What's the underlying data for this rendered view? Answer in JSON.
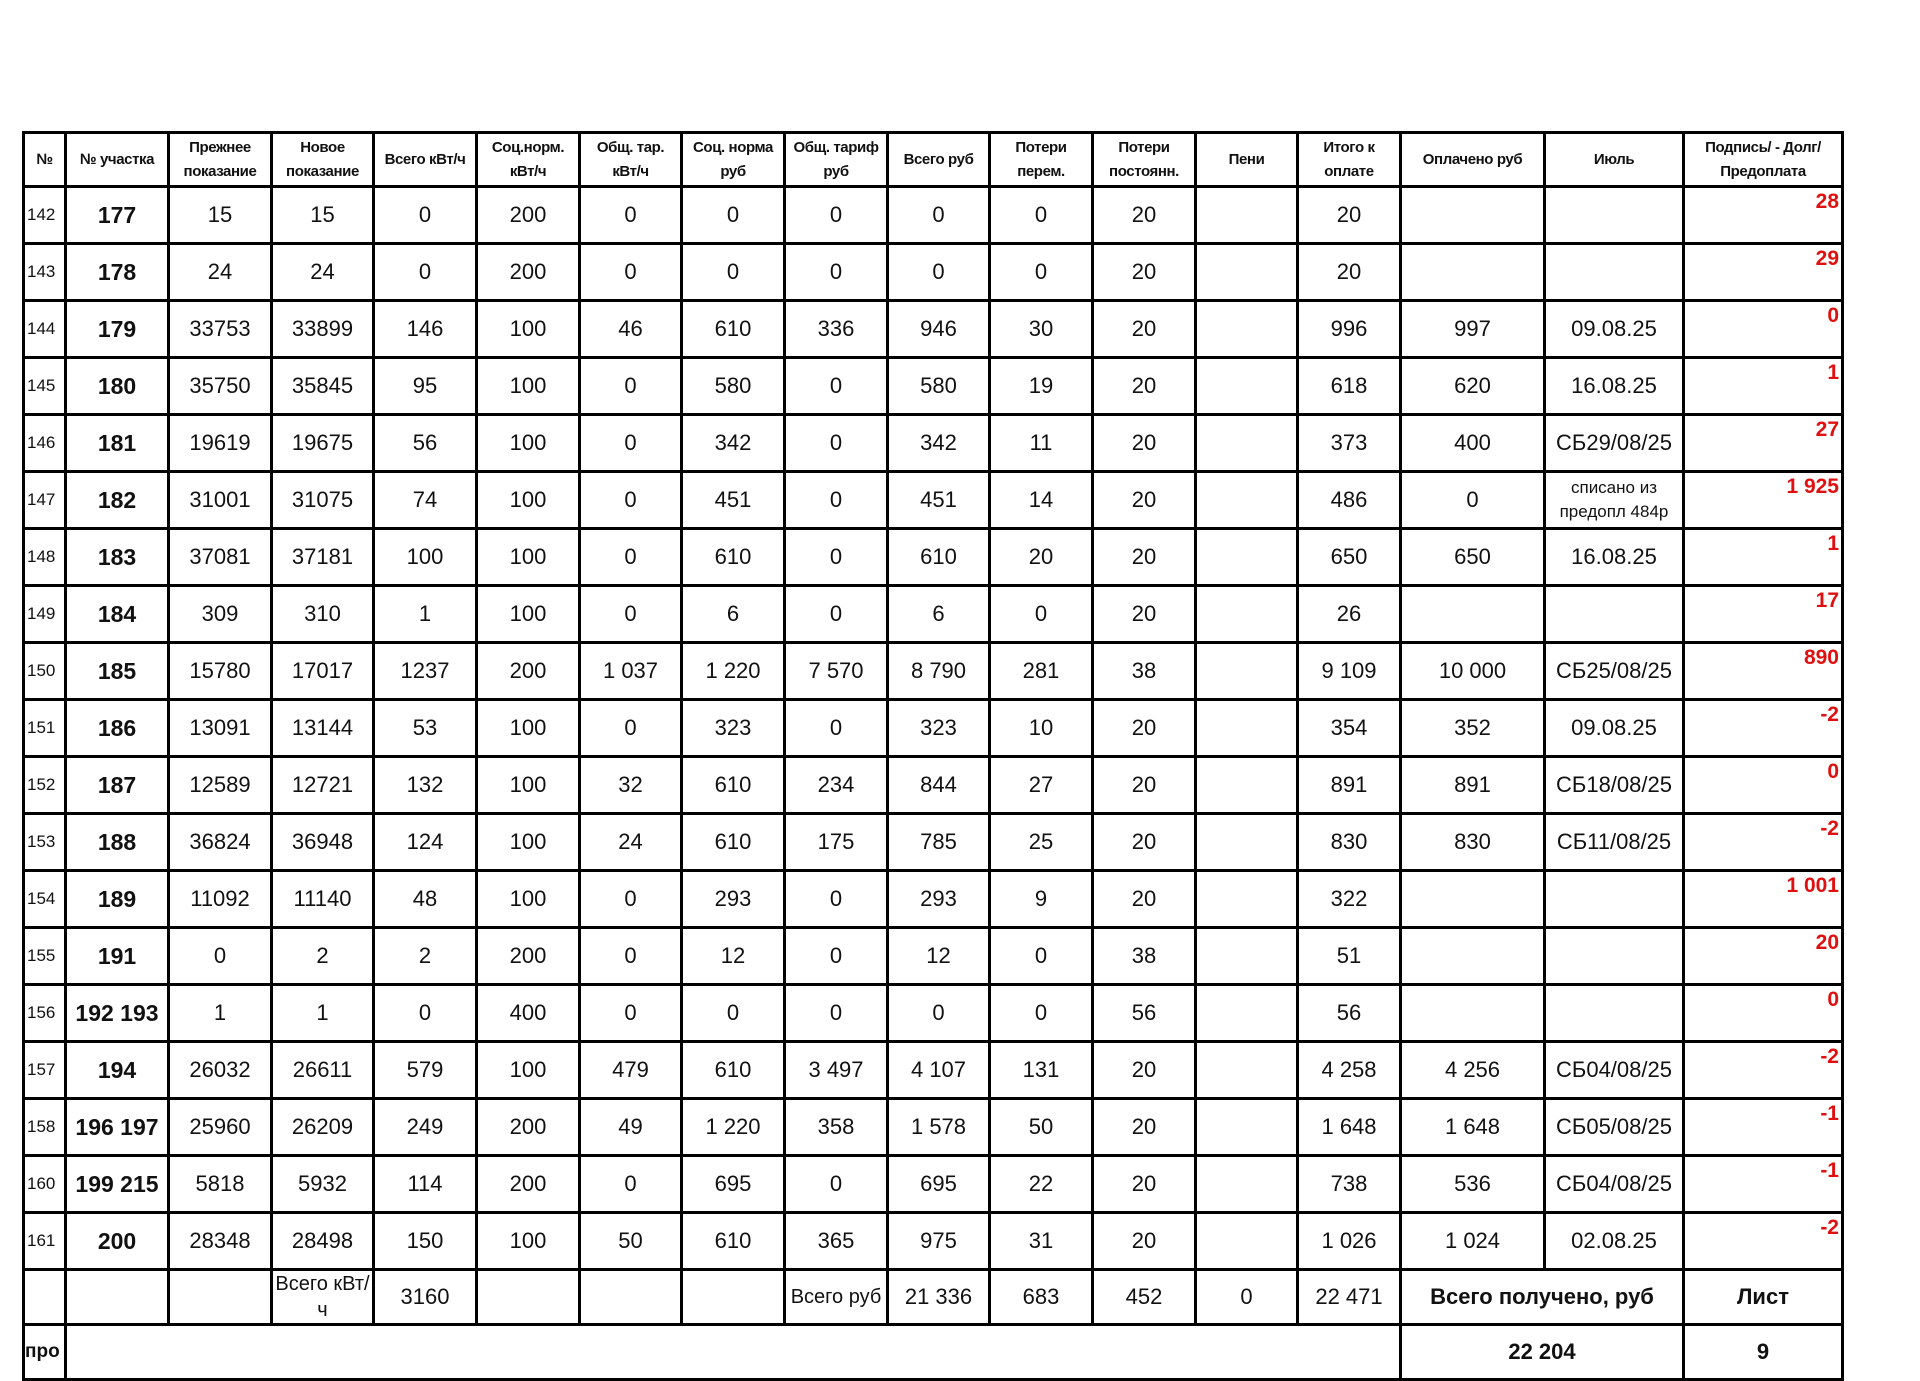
{
  "headers": [
    "№",
    "№ участка",
    "Прежнее показание",
    "Новое показание",
    "Всего кВт/ч",
    "Соц.норм. кВт/ч",
    "Общ. тар. кВт/ч",
    "Соц. норма руб",
    "Общ. тариф руб",
    "Всего руб",
    "Потери перем.",
    "Потери постоянн.",
    "Пени",
    "Итого к оплате",
    "Оплачено руб",
    "Июль",
    "Подпись/ - Долг/Предоплата"
  ],
  "rows": [
    [
      "142",
      "177",
      "15",
      "15",
      "0",
      "200",
      "0",
      "0",
      "0",
      "0",
      "0",
      "20",
      "",
      "20",
      "",
      "",
      "28"
    ],
    [
      "143",
      "178",
      "24",
      "24",
      "0",
      "200",
      "0",
      "0",
      "0",
      "0",
      "0",
      "20",
      "",
      "20",
      "",
      "",
      "29"
    ],
    [
      "144",
      "179",
      "33753",
      "33899",
      "146",
      "100",
      "46",
      "610",
      "336",
      "946",
      "30",
      "20",
      "",
      "996",
      "997",
      "09.08.25",
      "0"
    ],
    [
      "145",
      "180",
      "35750",
      "35845",
      "95",
      "100",
      "0",
      "580",
      "0",
      "580",
      "19",
      "20",
      "",
      "618",
      "620",
      "16.08.25",
      "1"
    ],
    [
      "146",
      "181",
      "19619",
      "19675",
      "56",
      "100",
      "0",
      "342",
      "0",
      "342",
      "11",
      "20",
      "",
      "373",
      "400",
      "СБ29/08/25",
      "27"
    ],
    [
      "147",
      "182",
      "31001",
      "31075",
      "74",
      "100",
      "0",
      "451",
      "0",
      "451",
      "14",
      "20",
      "",
      "486",
      "0",
      "списано из предопл 484р",
      "1 925"
    ],
    [
      "148",
      "183",
      "37081",
      "37181",
      "100",
      "100",
      "0",
      "610",
      "0",
      "610",
      "20",
      "20",
      "",
      "650",
      "650",
      "16.08.25",
      "1"
    ],
    [
      "149",
      "184",
      "309",
      "310",
      "1",
      "100",
      "0",
      "6",
      "0",
      "6",
      "0",
      "20",
      "",
      "26",
      "",
      "",
      "17"
    ],
    [
      "150",
      "185",
      "15780",
      "17017",
      "1237",
      "200",
      "1 037",
      "1 220",
      "7 570",
      "8 790",
      "281",
      "38",
      "",
      "9 109",
      "10 000",
      "СБ25/08/25",
      "890"
    ],
    [
      "151",
      "186",
      "13091",
      "13144",
      "53",
      "100",
      "0",
      "323",
      "0",
      "323",
      "10",
      "20",
      "",
      "354",
      "352",
      "09.08.25",
      "-2"
    ],
    [
      "152",
      "187",
      "12589",
      "12721",
      "132",
      "100",
      "32",
      "610",
      "234",
      "844",
      "27",
      "20",
      "",
      "891",
      "891",
      "СБ18/08/25",
      "0"
    ],
    [
      "153",
      "188",
      "36824",
      "36948",
      "124",
      "100",
      "24",
      "610",
      "175",
      "785",
      "25",
      "20",
      "",
      "830",
      "830",
      "СБ11/08/25",
      "-2"
    ],
    [
      "154",
      "189",
      "11092",
      "11140",
      "48",
      "100",
      "0",
      "293",
      "0",
      "293",
      "9",
      "20",
      "",
      "322",
      "",
      "",
      "1 001"
    ],
    [
      "155",
      "191",
      "0",
      "2",
      "2",
      "200",
      "0",
      "12",
      "0",
      "12",
      "0",
      "38",
      "",
      "51",
      "",
      "",
      "20"
    ],
    [
      "156",
      "192 193",
      "1",
      "1",
      "0",
      "400",
      "0",
      "0",
      "0",
      "0",
      "0",
      "56",
      "",
      "56",
      "",
      "",
      "0"
    ],
    [
      "157",
      "194",
      "26032",
      "26611",
      "579",
      "100",
      "479",
      "610",
      "3 497",
      "4 107",
      "131",
      "20",
      "",
      "4 258",
      "4 256",
      "СБ04/08/25",
      "-2"
    ],
    [
      "158",
      "196 197",
      "25960",
      "26209",
      "249",
      "200",
      "49",
      "1 220",
      "358",
      "1 578",
      "50",
      "20",
      "",
      "1 648",
      "1 648",
      "СБ05/08/25",
      "-1"
    ],
    [
      "160",
      "199 215",
      "5818",
      "5932",
      "114",
      "200",
      "0",
      "695",
      "0",
      "695",
      "22",
      "20",
      "",
      "738",
      "536",
      "СБ04/08/25",
      "-1"
    ],
    [
      "161",
      "200",
      "28348",
      "28498",
      "150",
      "100",
      "50",
      "610",
      "365",
      "975",
      "31",
      "20",
      "",
      "1 026",
      "1 024",
      "02.08.25",
      "-2"
    ]
  ],
  "totals": {
    "kwh_label": "Всего кВт/ч",
    "kwh": "3160",
    "rub_label": "Всего руб",
    "rub": "21 336",
    "loss_var": "683",
    "loss_const": "452",
    "penalty": "0",
    "to_pay": "22 471",
    "received_label": "Всего получено, руб",
    "sheet_label": "Лист"
  },
  "footer": {
    "pro": "про",
    "received": "22 204",
    "sheet": "9"
  },
  "colors": {
    "debt": "#e01010"
  }
}
